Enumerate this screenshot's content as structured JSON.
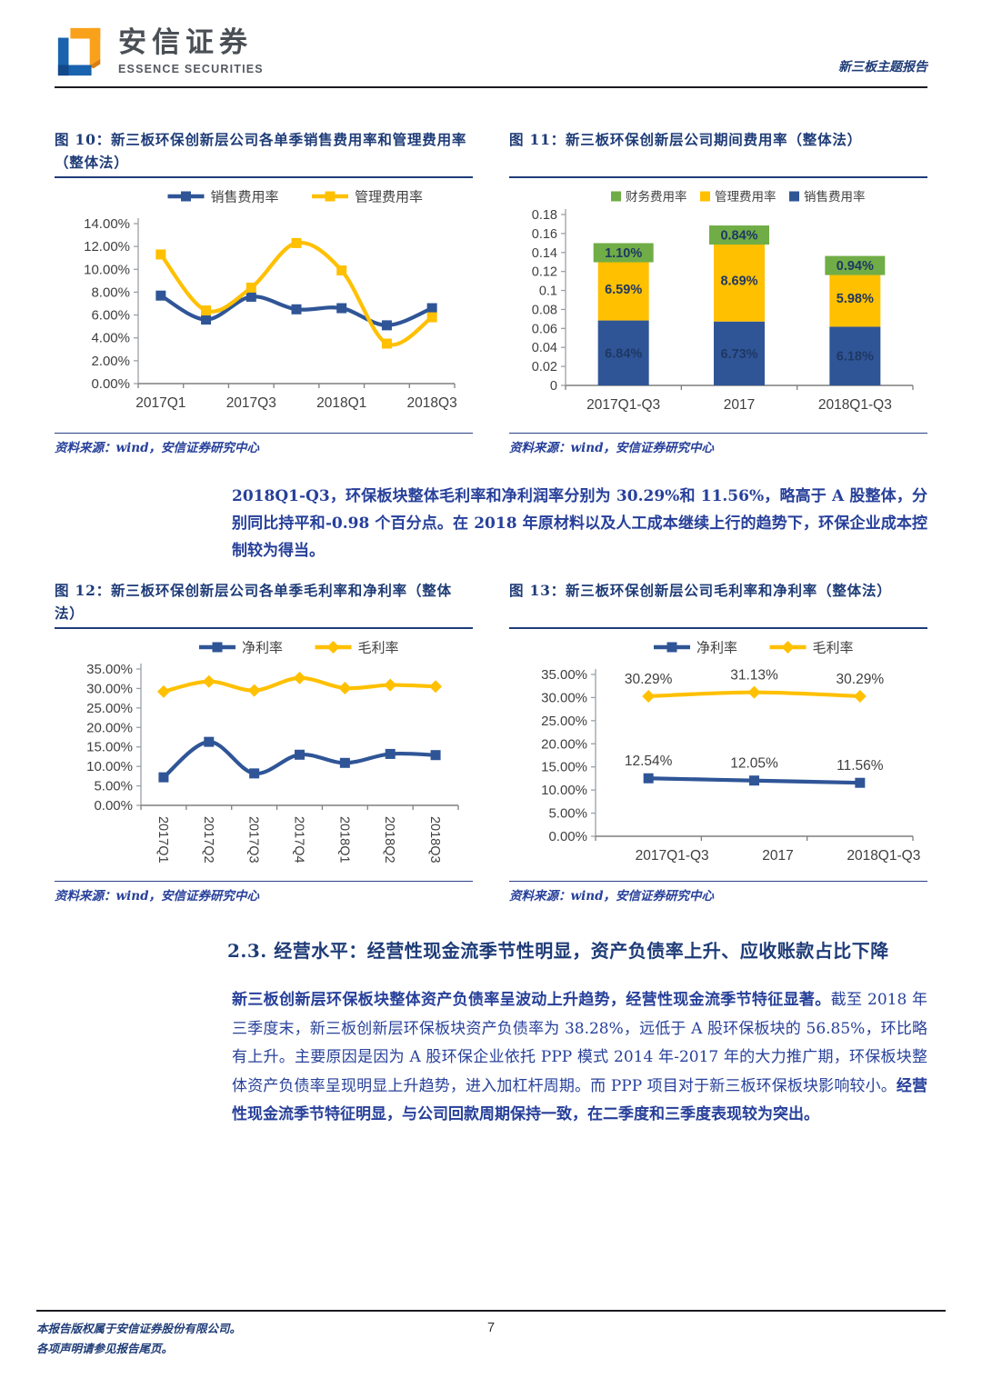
{
  "header": {
    "logo_cn": "安信证券",
    "logo_en": "ESSENCE SECURITIES",
    "report_type": "新三板主题报告"
  },
  "colors": {
    "navy_text": "#1F3C78",
    "body_blue": "#27409A",
    "series_blue": "#2F5597",
    "series_yellow": "#FFC000",
    "series_green": "#70AD47"
  },
  "chart_data": [
    {
      "caption": "图 10：新三板环保创新层公司各单季销售费用率和管理费用率（整体法）",
      "source": "资料来源：wind，安信证券研究中心",
      "type": "line",
      "categories": [
        "2017Q1",
        "2017Q2",
        "2017Q3",
        "2017Q4",
        "2018Q1",
        "2018Q2",
        "2018Q3"
      ],
      "xtick_labels_shown": [
        "2017Q1",
        "2017Q3",
        "2018Q1",
        "2018Q3"
      ],
      "series": [
        {
          "name": "销售费用率",
          "color": "#2F5597",
          "marker": "square",
          "values": [
            7.7,
            5.6,
            7.6,
            6.5,
            6.6,
            5.1,
            6.6
          ]
        },
        {
          "name": "管理费用率",
          "color": "#FFC000",
          "marker": "square",
          "values": [
            11.3,
            6.4,
            8.4,
            12.3,
            9.9,
            3.5,
            5.8
          ]
        }
      ],
      "ylim": [
        0,
        14
      ],
      "ytick_step": 2,
      "yformat": "pct2",
      "legend_position": "top",
      "grid": false
    },
    {
      "caption": "图 11：新三板环保创新层公司期间费用率（整体法）",
      "source": "资料来源：wind，安信证券研究中心",
      "type": "stacked-bar",
      "categories": [
        "2017Q1-Q3",
        "2017",
        "2018Q1-Q3"
      ],
      "series": [
        {
          "name": "销售费用率",
          "color": "#2F5597",
          "values": [
            0.0684,
            0.0673,
            0.0618
          ],
          "labels": [
            "6.84%",
            "6.73%",
            "6.18%"
          ]
        },
        {
          "name": "管理费用率",
          "color": "#FFC000",
          "values": [
            0.0659,
            0.0869,
            0.0598
          ],
          "labels": [
            "6.59%",
            "8.69%",
            "5.98%"
          ]
        },
        {
          "name": "财务费用率",
          "color": "#70AD47",
          "values": [
            0.011,
            0.0084,
            0.0094
          ],
          "labels": [
            "1.10%",
            "0.84%",
            "0.94%"
          ]
        }
      ],
      "legend_order": [
        "财务费用率",
        "管理费用率",
        "销售费用率"
      ],
      "ylim": [
        0,
        0.18
      ],
      "ytick_step": 0.02,
      "yformat": "plain",
      "legend_position": "top",
      "grid": false
    },
    {
      "caption": "图 12：新三板环保创新层公司各单季毛利率和净利率（整体法）",
      "source": "资料来源：wind，安信证券研究中心",
      "type": "line",
      "categories": [
        "2017Q1",
        "2017Q2",
        "2017Q3",
        "2017Q4",
        "2018Q1",
        "2018Q2",
        "2018Q3"
      ],
      "series": [
        {
          "name": "净利率",
          "color": "#2F5597",
          "marker": "square",
          "values": [
            7.2,
            16.3,
            8.2,
            13.0,
            10.9,
            13.2,
            12.9
          ]
        },
        {
          "name": "毛利率",
          "color": "#FFC000",
          "marker": "diamond",
          "values": [
            29.2,
            31.8,
            29.5,
            32.7,
            30.1,
            30.9,
            30.5
          ]
        }
      ],
      "ylim": [
        0,
        35
      ],
      "ytick_step": 5,
      "yformat": "pct2",
      "xlabel_rotation": 90,
      "legend_position": "top",
      "grid": false
    },
    {
      "caption": "图 13：新三板环保创新层公司毛利率和净利率（整体法）",
      "source": "资料来源：wind，安信证券研究中心",
      "type": "line",
      "categories": [
        "2017Q1-Q3",
        "2017",
        "2018Q1-Q3"
      ],
      "series": [
        {
          "name": "净利率",
          "color": "#2F5597",
          "marker": "square",
          "values": [
            12.54,
            12.05,
            11.56
          ],
          "data_labels": [
            "12.54%",
            "12.05%",
            "11.56%"
          ]
        },
        {
          "name": "毛利率",
          "color": "#FFC000",
          "marker": "diamond",
          "values": [
            30.29,
            31.13,
            30.29
          ],
          "data_labels": [
            "30.29%",
            "31.13%",
            "30.29%"
          ]
        }
      ],
      "ylim": [
        0,
        35
      ],
      "ytick_step": 5,
      "yformat": "pct2",
      "legend_position": "top",
      "grid": false
    }
  ],
  "paragraphs": {
    "summary": "2018Q1-Q3，环保板块整体毛利率和净利润率分别为 30.29%和 11.56%，略高于 A 股整体，分别同比持平和-0.98 个百分点。在 2018 年原材料以及人工成本继续上行的趋势下，环保企业成本控制较为得当。",
    "body_lead": "新三板创新层环保板块整体资产负债率呈波动上升趋势，经营性现金流季节特征显著。",
    "body_mid": "截至 2018 年三季度末，新三板创新层环保板块资产负债率为 38.28%，远低于 A 股环保板块的 56.85%，环比略有上升。主要原因是因为 A 股环保企业依托 PPP 模式 2014 年-2017 年的大力推广期，环保板块整体资产负债率呈现明显上升趋势，进入加杠杆周期。而 PPP 项目对于新三板环保板块影响较小。",
    "body_tail": "经营性现金流季节特征明显，与公司回款周期保持一致，在二季度和三季度表现较为突出。"
  },
  "section": {
    "heading": "2.3. 经营水平：经营性现金流季节性明显，资产负债率上升、应收账款占比下降"
  },
  "footer": {
    "copyright": "本报告版权属于安信证券股份有限公司。",
    "notice": "各项声明请参见报告尾页。",
    "page": "7"
  }
}
